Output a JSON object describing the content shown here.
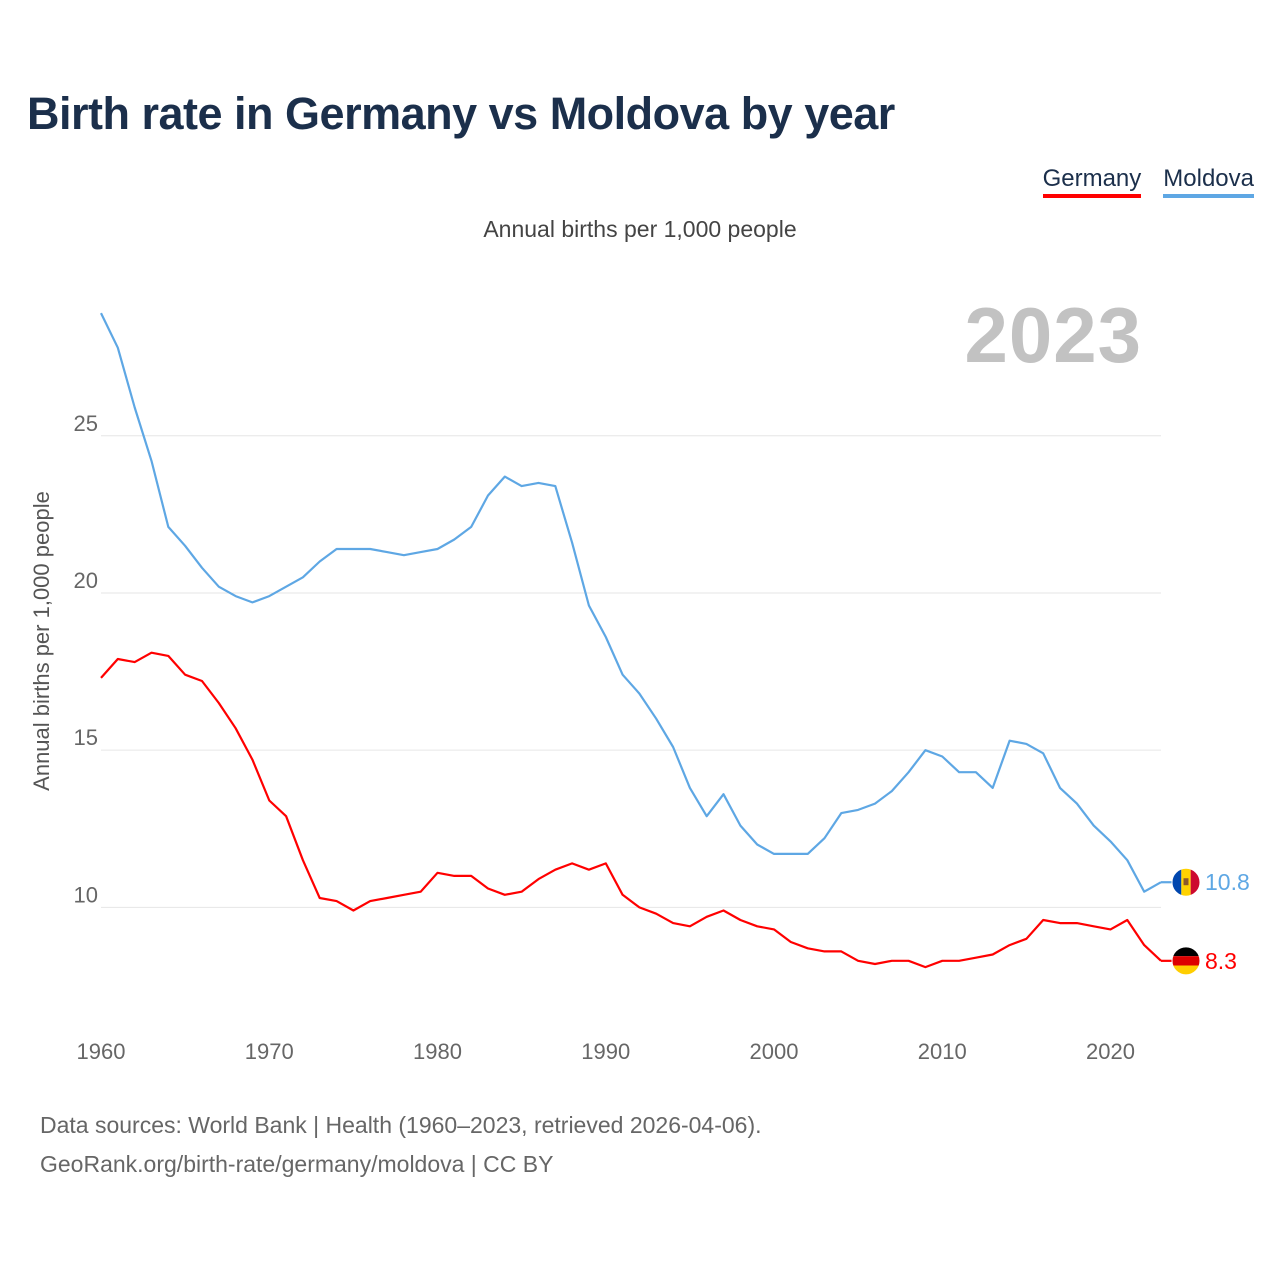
{
  "title": "Birth rate in Germany vs Moldova by year",
  "subtitle": "Annual births per 1,000 people",
  "year_stamp": "2023",
  "legend": [
    {
      "label": "Germany",
      "color": "#ff0000"
    },
    {
      "label": "Moldova",
      "color": "#5ea7e4"
    }
  ],
  "source": {
    "line1": "Data sources: World Bank | Health (1960–2023, retrieved 2026-04-06).",
    "line2": "GeoRank.org/birth-rate/germany/moldova | CC BY"
  },
  "chart_data": {
    "type": "line",
    "title": "Birth rate in Germany vs Moldova by year",
    "xlabel": "",
    "ylabel": "Annual births per 1,000 people",
    "xlim": [
      1960,
      2023
    ],
    "ylim": [
      6.8,
      29
    ],
    "x_ticks": [
      1960,
      1970,
      1980,
      1990,
      2000,
      2010,
      2020
    ],
    "y_ticks": [
      10,
      15,
      20,
      25
    ],
    "grid": true,
    "legend_position": "top-right",
    "x": [
      1960,
      1961,
      1962,
      1963,
      1964,
      1965,
      1966,
      1967,
      1968,
      1969,
      1970,
      1971,
      1972,
      1973,
      1974,
      1975,
      1976,
      1977,
      1978,
      1979,
      1980,
      1981,
      1982,
      1983,
      1984,
      1985,
      1986,
      1987,
      1988,
      1989,
      1990,
      1991,
      1992,
      1993,
      1994,
      1995,
      1996,
      1997,
      1998,
      1999,
      2000,
      2001,
      2002,
      2003,
      2004,
      2005,
      2006,
      2007,
      2008,
      2009,
      2010,
      2011,
      2012,
      2013,
      2014,
      2015,
      2016,
      2017,
      2018,
      2019,
      2020,
      2021,
      2022,
      2023
    ],
    "series": [
      {
        "name": "Germany",
        "color": "#ff0000",
        "end_label": "8.3",
        "values": [
          17.3,
          17.9,
          17.8,
          18.1,
          18.0,
          17.4,
          17.2,
          16.5,
          15.7,
          14.7,
          13.4,
          12.9,
          11.5,
          10.3,
          10.2,
          9.9,
          10.2,
          10.3,
          10.4,
          10.5,
          11.1,
          11.0,
          11.0,
          10.6,
          10.4,
          10.5,
          10.9,
          11.2,
          11.4,
          11.2,
          11.4,
          10.4,
          10.0,
          9.8,
          9.5,
          9.4,
          9.7,
          9.9,
          9.6,
          9.4,
          9.3,
          8.9,
          8.7,
          8.6,
          8.6,
          8.3,
          8.2,
          8.3,
          8.3,
          8.1,
          8.3,
          8.3,
          8.4,
          8.5,
          8.8,
          9.0,
          9.6,
          9.5,
          9.5,
          9.4,
          9.3,
          9.6,
          8.8,
          8.3
        ]
      },
      {
        "name": "Moldova",
        "color": "#5ea7e4",
        "end_label": "10.8",
        "values": [
          28.9,
          27.8,
          25.9,
          24.2,
          22.1,
          21.5,
          20.8,
          20.2,
          19.9,
          19.7,
          19.9,
          20.2,
          20.5,
          21.0,
          21.4,
          21.4,
          21.4,
          21.3,
          21.2,
          21.3,
          21.4,
          21.7,
          22.1,
          23.1,
          23.7,
          23.4,
          23.5,
          23.4,
          21.6,
          19.6,
          18.6,
          17.4,
          16.8,
          16.0,
          15.1,
          13.8,
          12.9,
          13.6,
          12.6,
          12.0,
          11.7,
          11.7,
          11.7,
          12.2,
          13.0,
          13.1,
          13.3,
          13.7,
          14.3,
          15.0,
          14.8,
          14.3,
          14.3,
          13.8,
          15.3,
          15.2,
          14.9,
          13.8,
          13.3,
          12.6,
          12.1,
          11.5,
          10.5,
          10.8
        ]
      }
    ]
  }
}
